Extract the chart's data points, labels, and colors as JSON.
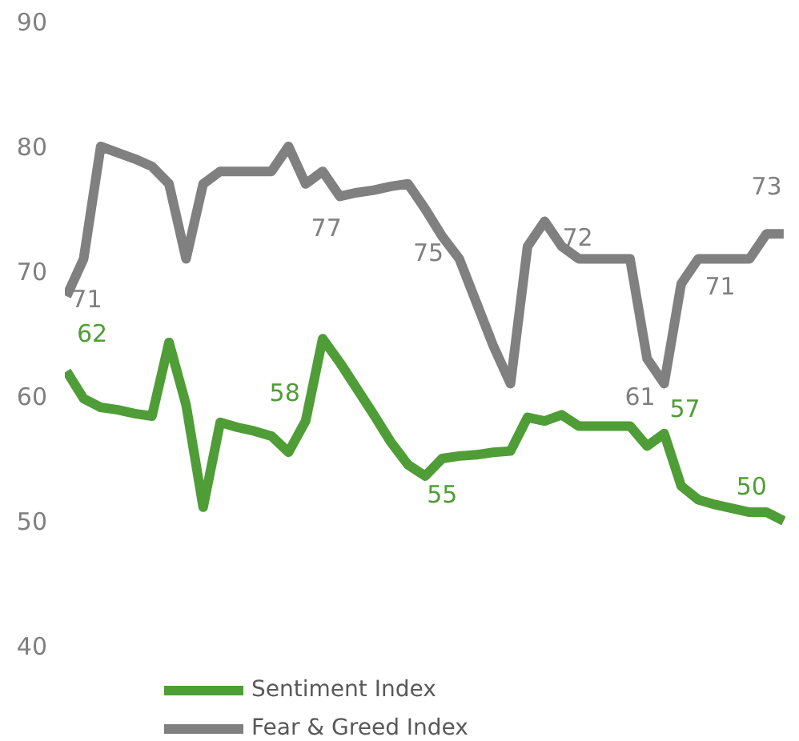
{
  "chart_data": {
    "type": "line",
    "categories": [
      null,
      null,
      null,
      null,
      null,
      null,
      null,
      null,
      null,
      null,
      null,
      null,
      null,
      null,
      null,
      null,
      null,
      null,
      null,
      null,
      null,
      null,
      null,
      null,
      null,
      null,
      null,
      null,
      null,
      null,
      null,
      null,
      null,
      null,
      null,
      null,
      null,
      null,
      null,
      null,
      null,
      null,
      null
    ],
    "ylim": [
      40,
      90
    ],
    "yticks": [
      40,
      50,
      60,
      70,
      80,
      90
    ],
    "tick_labels": "y",
    "grid": false,
    "legend": "bottom",
    "marker": "none",
    "line_style": "solid",
    "series": [
      {
        "name": "Sentiment Index",
        "color": "#4f9d37",
        "values": [
          62,
          59.8,
          59.1,
          58.9,
          58.6,
          58.4,
          64.3,
          59.3,
          51.1,
          57.9,
          57.5,
          57.2,
          56.8,
          55.5,
          58,
          64.6,
          62.7,
          60.6,
          58.5,
          56.3,
          54.5,
          53.6,
          55,
          55.2,
          55.3,
          55.5,
          55.6,
          58.3,
          58.0,
          58.5,
          57.6,
          57.6,
          57.6,
          57.6,
          56.0,
          57,
          52.8,
          51.7,
          51.3,
          51.0,
          50.7,
          50.7,
          50
        ],
        "value_labels": [
          "62",
          null,
          null,
          null,
          null,
          null,
          null,
          null,
          null,
          null,
          null,
          null,
          null,
          null,
          "58",
          null,
          null,
          null,
          null,
          null,
          null,
          null,
          "55",
          null,
          null,
          null,
          null,
          null,
          null,
          null,
          null,
          null,
          null,
          null,
          null,
          "57",
          null,
          null,
          null,
          null,
          null,
          null,
          "50"
        ]
      },
      {
        "name": "Fear & Greed Index",
        "color": "#808080",
        "values": [
          68,
          71,
          80,
          79.5,
          79.0,
          78.4,
          77,
          71,
          77,
          78,
          78,
          78,
          78,
          80,
          77,
          78,
          76,
          76.3,
          76.5,
          76.8,
          77,
          75,
          72.8,
          71,
          67.5,
          64,
          61,
          72,
          74,
          72,
          71,
          71,
          71,
          71,
          63,
          61,
          69,
          71,
          71,
          71,
          71,
          73,
          73
        ],
        "value_labels": [
          null,
          "71",
          null,
          null,
          null,
          null,
          null,
          null,
          null,
          null,
          null,
          null,
          null,
          null,
          "77",
          null,
          null,
          null,
          null,
          null,
          null,
          "75",
          null,
          null,
          null,
          null,
          null,
          null,
          null,
          "72",
          null,
          null,
          null,
          null,
          null,
          "61",
          null,
          null,
          "71",
          null,
          null,
          "73",
          null
        ]
      }
    ]
  }
}
